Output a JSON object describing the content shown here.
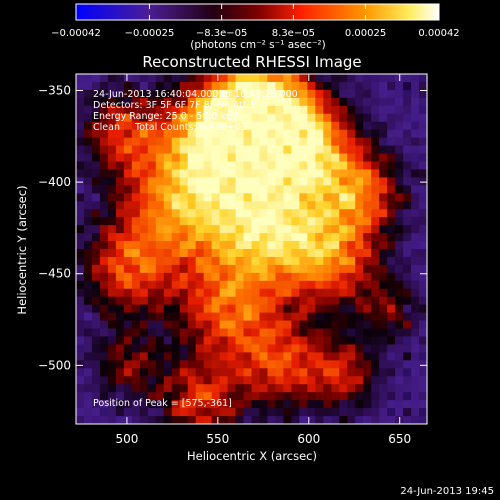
{
  "chart_data": {
    "type": "heatmap",
    "title": "Reconstructed RHESSI Image",
    "xlabel": "Heliocentric X (arcsec)",
    "ylabel": "Heliocentric Y (arcsec)",
    "xlim": [
      472,
      665
    ],
    "ylim": [
      -532,
      -341
    ],
    "x_ticks": [
      500,
      550,
      600,
      650
    ],
    "y_ticks": [
      -350,
      -400,
      -450,
      -500
    ],
    "colorbar": {
      "range": [
        -0.00042,
        0.00042
      ],
      "tick_values": [
        -0.00042,
        -0.00025,
        -8.3e-05,
        8.3e-05,
        0.00025,
        0.00042
      ],
      "tick_labels": [
        "−0.00042",
        "−0.00025",
        "−8.3e−05",
        "8.3e−05",
        "0.00025",
        "0.00042"
      ],
      "unit_label": "(photons cm⁻² s⁻¹ asec⁻²)"
    },
    "annotations": [
      "24-Jun-2013 16:40:04.000 to 16:43:26.000",
      "Detectors: 3F 5F 6F 7F 8F 9F Att 1",
      "Energy Range: 25.0 - 50.0 keV",
      "Clean     Total Counts: 6.83E+03"
    ],
    "peak_label": "Position of Peak = [575,-361]",
    "peak": [
      575,
      -361
    ],
    "grid": false,
    "colormap": [
      "#0000ff",
      "#4c1a8c",
      "#1a0008",
      "#ff2200",
      "#ff9900",
      "#ffff90",
      "#ffffff"
    ]
  },
  "footer_timestamp": "24-Jun-2013 19:45"
}
